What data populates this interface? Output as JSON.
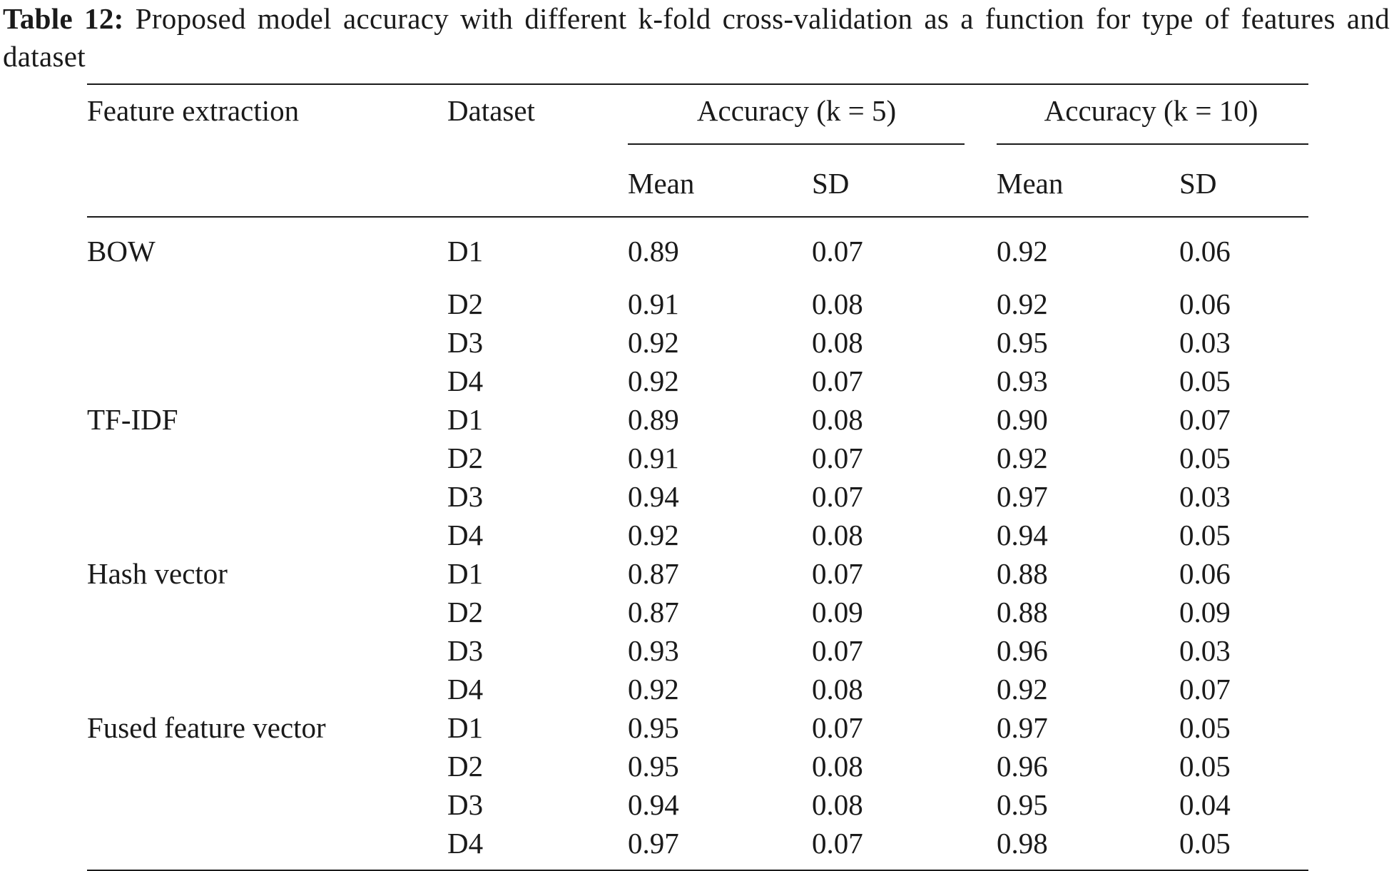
{
  "caption": {
    "label": "Table 12:",
    "text": " Proposed model accuracy with different k-fold cross-validation as a function for type of features and dataset"
  },
  "header": {
    "feature_extraction": "Feature extraction",
    "dataset": "Dataset",
    "accuracy_k5": "Accuracy (k = 5)",
    "accuracy_k10": "Accuracy (k = 10)",
    "mean": "Mean",
    "sd": "SD"
  },
  "rows": [
    {
      "feature": "BOW",
      "dataset": "D1",
      "mean5": "0.89",
      "sd5": "0.07",
      "mean10": "0.92",
      "sd10": "0.06"
    },
    {
      "feature": "",
      "dataset": "D2",
      "mean5": "0.91",
      "sd5": "0.08",
      "mean10": "0.92",
      "sd10": "0.06"
    },
    {
      "feature": "",
      "dataset": "D3",
      "mean5": "0.92",
      "sd5": "0.08",
      "mean10": "0.95",
      "sd10": "0.03"
    },
    {
      "feature": "",
      "dataset": "D4",
      "mean5": "0.92",
      "sd5": "0.07",
      "mean10": "0.93",
      "sd10": "0.05"
    },
    {
      "feature": "TF-IDF",
      "dataset": "D1",
      "mean5": "0.89",
      "sd5": "0.08",
      "mean10": "0.90",
      "sd10": "0.07"
    },
    {
      "feature": "",
      "dataset": "D2",
      "mean5": "0.91",
      "sd5": "0.07",
      "mean10": "0.92",
      "sd10": "0.05"
    },
    {
      "feature": "",
      "dataset": "D3",
      "mean5": "0.94",
      "sd5": "0.07",
      "mean10": "0.97",
      "sd10": "0.03"
    },
    {
      "feature": "",
      "dataset": "D4",
      "mean5": "0.92",
      "sd5": "0.08",
      "mean10": "0.94",
      "sd10": "0.05"
    },
    {
      "feature": "Hash vector",
      "dataset": "D1",
      "mean5": "0.87",
      "sd5": "0.07",
      "mean10": "0.88",
      "sd10": "0.06"
    },
    {
      "feature": "",
      "dataset": "D2",
      "mean5": "0.87",
      "sd5": "0.09",
      "mean10": "0.88",
      "sd10": "0.09"
    },
    {
      "feature": "",
      "dataset": "D3",
      "mean5": "0.93",
      "sd5": "0.07",
      "mean10": "0.96",
      "sd10": "0.03"
    },
    {
      "feature": "",
      "dataset": "D4",
      "mean5": "0.92",
      "sd5": "0.08",
      "mean10": "0.92",
      "sd10": "0.07"
    },
    {
      "feature": "Fused feature vector",
      "dataset": "D1",
      "mean5": "0.95",
      "sd5": "0.07",
      "mean10": "0.97",
      "sd10": "0.05"
    },
    {
      "feature": "",
      "dataset": "D2",
      "mean5": "0.95",
      "sd5": "0.08",
      "mean10": "0.96",
      "sd10": "0.05"
    },
    {
      "feature": "",
      "dataset": "D3",
      "mean5": "0.94",
      "sd5": "0.08",
      "mean10": "0.95",
      "sd10": "0.04"
    },
    {
      "feature": "",
      "dataset": "D4",
      "mean5": "0.97",
      "sd5": "0.07",
      "mean10": "0.98",
      "sd10": "0.05"
    }
  ]
}
